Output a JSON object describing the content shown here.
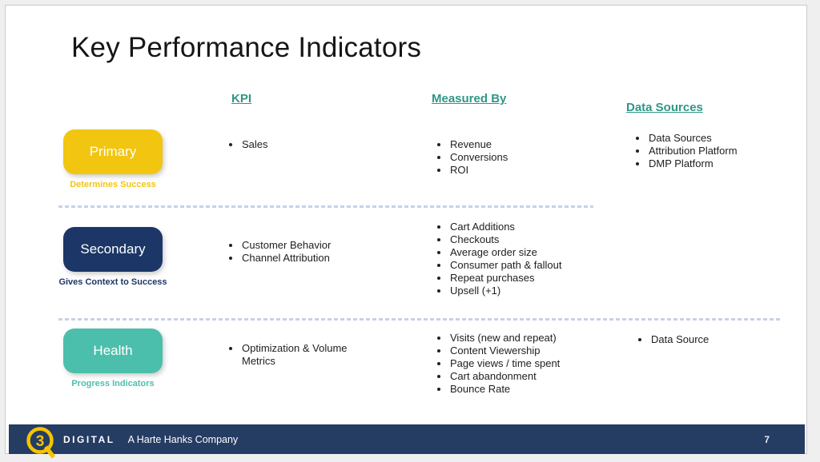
{
  "slide": {
    "title": "Key Performance Indicators",
    "columns": [
      {
        "label": "KPI"
      },
      {
        "label": "Measured By"
      },
      {
        "label": "Data Sources"
      }
    ],
    "rows": [
      {
        "label": "Primary",
        "caption": "Determines Success",
        "color": "#F2C511",
        "kpi": [
          "Sales"
        ],
        "measured_by": [
          "Revenue",
          "Conversions",
          "ROI"
        ],
        "data_sources": [
          "Data Sources",
          "Attribution Platform",
          "DMP Platform"
        ]
      },
      {
        "label": "Secondary",
        "caption": "Gives Context to Success",
        "color": "#1C3667",
        "kpi": [
          "Customer Behavior",
          "Channel Attribution"
        ],
        "measured_by": [
          "Cart Additions",
          "Checkouts",
          "Average order size",
          "Consumer path & fallout",
          "Repeat purchases",
          "Upsell (+1)"
        ],
        "data_sources": []
      },
      {
        "label": "Health",
        "caption": "Progress Indicators",
        "color": "#4CBFAC",
        "kpi": [
          "Optimization & Volume Metrics"
        ],
        "measured_by": [
          "Visits (new and repeat)",
          "Content Viewership",
          "Page views / time spent",
          "Cart abandonment",
          "Bounce Rate"
        ],
        "data_sources": [
          "Data Source"
        ]
      }
    ],
    "footer": {
      "logo_number": "3",
      "logo_text": "DIGITAL",
      "company": "A Harte Hanks Company",
      "page_number": "7"
    }
  },
  "colors": {
    "header_teal": "#2F9687",
    "footer_navy": "#253C63",
    "divider_blue": "#C7D1E9",
    "logo_yellow": "#F5C400"
  }
}
